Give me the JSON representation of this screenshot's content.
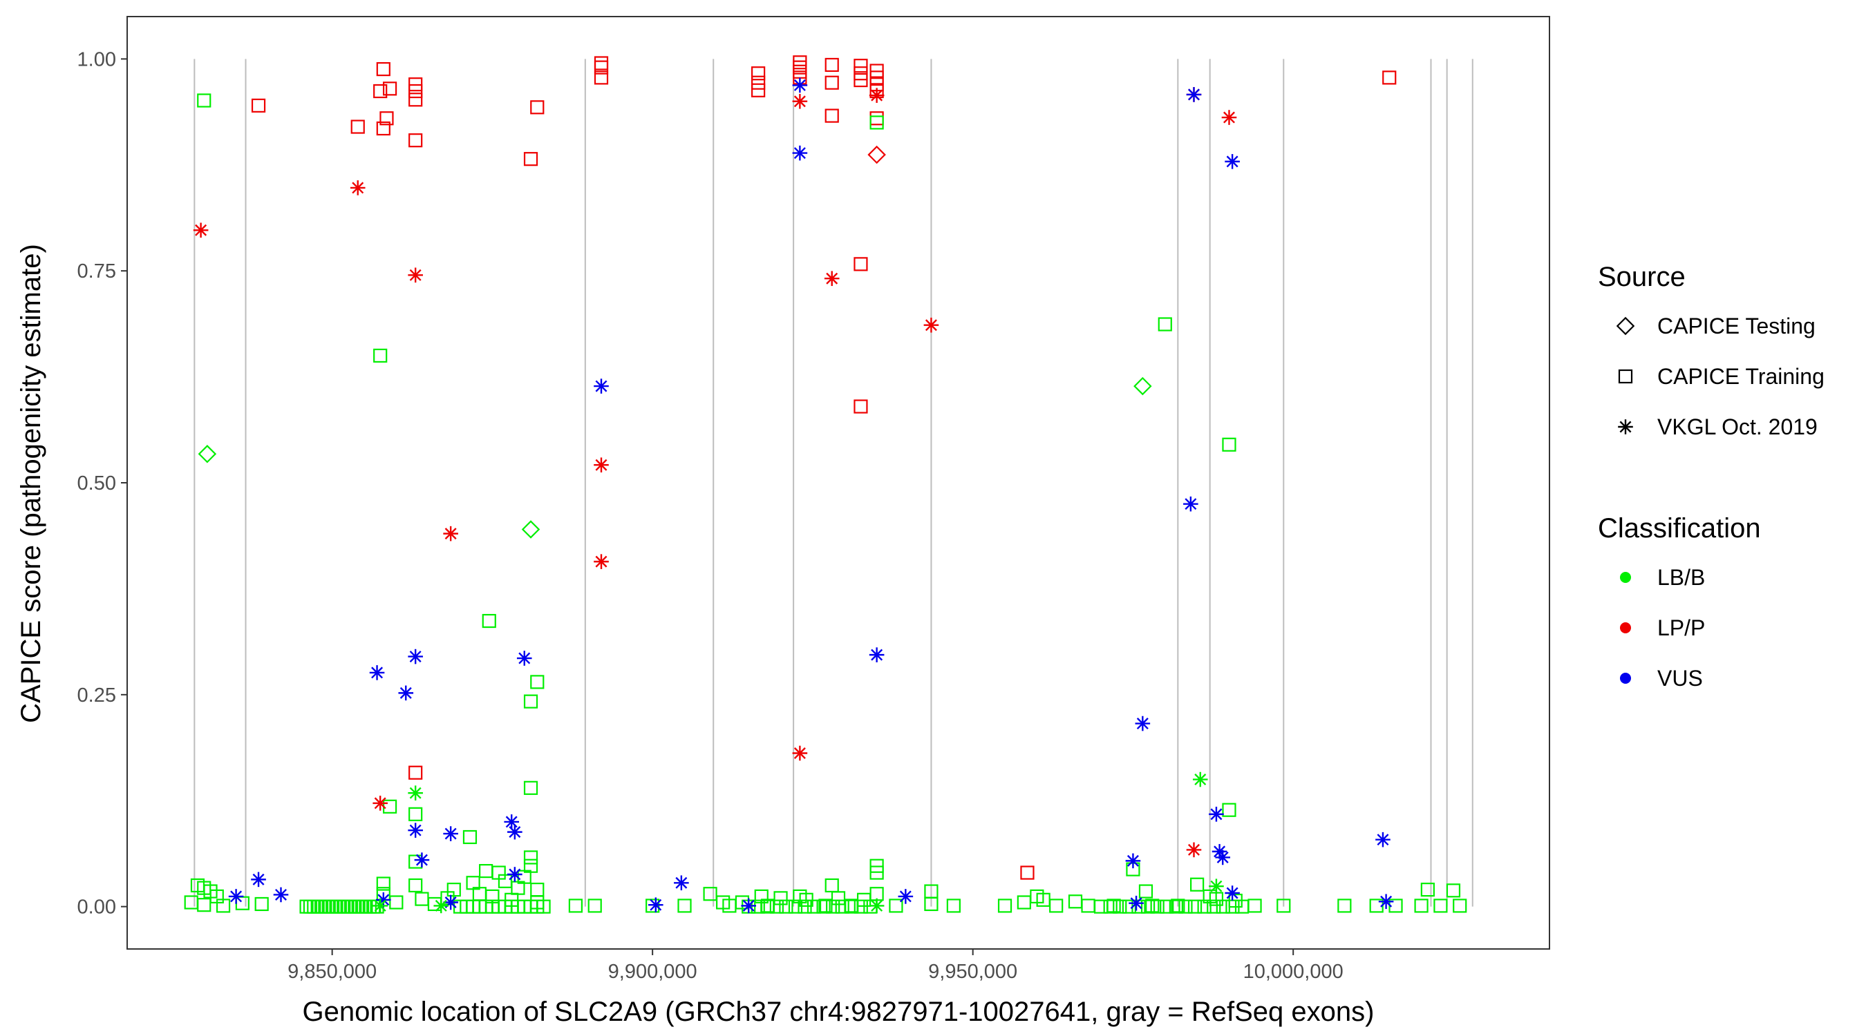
{
  "chart_data": {
    "type": "scatter",
    "title": "",
    "xlabel": "Genomic location of SLC2A9 (GRCh37 chr4:9827971-10027641, gray = RefSeq exons)",
    "ylabel": "CAPICE score (pathogenicity estimate)",
    "xlim": [
      9818000,
      10040000
    ],
    "ylim": [
      -0.05,
      1.05
    ],
    "x_ticks": [
      9850000,
      9900000,
      9950000,
      10000000
    ],
    "x_tick_labels": [
      "9,850,000",
      "9,900,000",
      "9,950,000",
      "10,000,000"
    ],
    "y_ticks": [
      0.0,
      0.25,
      0.5,
      0.75,
      1.0
    ],
    "y_tick_labels": [
      "0.00",
      "0.25",
      "0.50",
      "0.75",
      "1.00"
    ],
    "grid": false,
    "exon_lines": [
      9828500,
      9836500,
      9889500,
      9909500,
      9922000,
      9943500,
      9982000,
      9987000,
      9998500,
      10021500,
      10024000,
      10028000
    ],
    "legend_position": "right",
    "legend": {
      "source_title": "Source",
      "source_entries": [
        {
          "label": "CAPICE Testing",
          "shape": "diamond"
        },
        {
          "label": "CAPICE Training",
          "shape": "square"
        },
        {
          "label": "VKGL Oct. 2019",
          "shape": "asterisk"
        }
      ],
      "class_title": "Classification",
      "class_entries": [
        {
          "label": "LB/B",
          "color": "#00ee00"
        },
        {
          "label": "LP/P",
          "color": "#ee0000"
        },
        {
          "label": "VUS",
          "color": "#0000ee"
        }
      ]
    },
    "series": [
      {
        "source": "CAPICE Training",
        "classification": "LP/P",
        "shape": "square",
        "color": "#ee0000",
        "points": [
          [
            9838500,
            0.945
          ],
          [
            9854000,
            0.92
          ],
          [
            9857500,
            0.962
          ],
          [
            9858000,
            0.988
          ],
          [
            9858000,
            0.918
          ],
          [
            9858500,
            0.93
          ],
          [
            9859000,
            0.965
          ],
          [
            9863000,
            0.97
          ],
          [
            9863000,
            0.962
          ],
          [
            9863000,
            0.952
          ],
          [
            9863000,
            0.904
          ],
          [
            9881000,
            0.882
          ],
          [
            9882000,
            0.943
          ],
          [
            9892000,
            0.995
          ],
          [
            9892000,
            0.99
          ],
          [
            9892000,
            0.978
          ],
          [
            9916500,
            0.983
          ],
          [
            9916500,
            0.972
          ],
          [
            9916500,
            0.963
          ],
          [
            9923000,
            0.996
          ],
          [
            9923000,
            0.99
          ],
          [
            9923000,
            0.985
          ],
          [
            9923000,
            0.978
          ],
          [
            9928000,
            0.993
          ],
          [
            9928000,
            0.972
          ],
          [
            9928000,
            0.933
          ],
          [
            9932500,
            0.992
          ],
          [
            9932500,
            0.983
          ],
          [
            9932500,
            0.975
          ],
          [
            9932500,
            0.758
          ],
          [
            9932500,
            0.59
          ],
          [
            9935000,
            0.986
          ],
          [
            9935000,
            0.978
          ],
          [
            9935000,
            0.97
          ],
          [
            9935000,
            0.962
          ],
          [
            9935000,
            0.93
          ],
          [
            9863000,
            0.158
          ],
          [
            9958500,
            0.04
          ],
          [
            10015000,
            0.978
          ]
        ]
      },
      {
        "source": "CAPICE Training",
        "classification": "LB/B",
        "shape": "square",
        "color": "#00ee00",
        "points": [
          [
            9830000,
            0.951
          ],
          [
            9857500,
            0.65
          ],
          [
            9859000,
            0.118
          ],
          [
            9874500,
            0.337
          ],
          [
            9863000,
            0.109
          ],
          [
            9863000,
            0.053
          ],
          [
            9863000,
            0.025
          ],
          [
            9871500,
            0.082
          ],
          [
            9876000,
            0.04
          ],
          [
            9881000,
            0.242
          ],
          [
            9882000,
            0.265
          ],
          [
            9881000,
            0.14
          ],
          [
            9881000,
            0.058
          ],
          [
            9881000,
            0.048
          ],
          [
            9880000,
            0.035
          ],
          [
            9879000,
            0.022
          ],
          [
            9877000,
            0.03
          ],
          [
            9874000,
            0.042
          ],
          [
            9869000,
            0.02
          ],
          [
            9868000,
            0.01
          ],
          [
            9829000,
            0.025
          ],
          [
            9830000,
            0.022
          ],
          [
            9831000,
            0.018
          ],
          [
            9832000,
            0.012
          ],
          [
            9828000,
            0.005
          ],
          [
            9830000,
            0.002
          ],
          [
            9833000,
            0.001
          ],
          [
            9836000,
            0.004
          ],
          [
            9839000,
            0.003
          ],
          [
            9858000,
            0.027
          ],
          [
            9858000,
            0.015
          ],
          [
            9860000,
            0.005
          ],
          [
            9864000,
            0.009
          ],
          [
            9866000,
            0.003
          ],
          [
            9872000,
            0.028
          ],
          [
            9873000,
            0.015
          ],
          [
            9875000,
            0.012
          ],
          [
            9878000,
            0.008
          ],
          [
            9882000,
            0.02
          ],
          [
            9882000,
            0.005
          ],
          [
            9909000,
            0.015
          ],
          [
            9911000,
            0.005
          ],
          [
            9914000,
            0.005
          ],
          [
            9917000,
            0.012
          ],
          [
            9920000,
            0.01
          ],
          [
            9923000,
            0.012
          ],
          [
            9924000,
            0.008
          ],
          [
            9928000,
            0.025
          ],
          [
            9929000,
            0.01
          ],
          [
            9933000,
            0.008
          ],
          [
            9935000,
            0.048
          ],
          [
            9935000,
            0.04
          ],
          [
            9935000,
            0.015
          ],
          [
            9935000,
            0.925
          ],
          [
            9943500,
            0.018
          ],
          [
            9943500,
            0.003
          ],
          [
            9958000,
            0.005
          ],
          [
            9960000,
            0.012
          ],
          [
            9961000,
            0.008
          ],
          [
            9966000,
            0.006
          ],
          [
            9975000,
            0.044
          ],
          [
            9977000,
            0.018
          ],
          [
            9980000,
            0.687
          ],
          [
            9985000,
            0.026
          ],
          [
            9987000,
            0.012
          ],
          [
            9988000,
            0.009
          ],
          [
            9990000,
            0.545
          ],
          [
            9990000,
            0.114
          ],
          [
            9991000,
            0.007
          ],
          [
            10021000,
            0.02
          ],
          [
            10025000,
            0.019
          ],
          [
            9888000,
            0.001
          ],
          [
            9891000,
            0.001
          ],
          [
            9900000,
            0.001
          ],
          [
            9905000,
            0.001
          ],
          [
            9912000,
            0.001
          ],
          [
            9918000,
            0.001
          ],
          [
            9927000,
            0.001
          ],
          [
            9931000,
            0.001
          ],
          [
            9938000,
            0.001
          ],
          [
            9947000,
            0.001
          ],
          [
            9955000,
            0.001
          ],
          [
            9963000,
            0.001
          ],
          [
            9968000,
            0.001
          ],
          [
            9972000,
            0.001
          ],
          [
            9978000,
            0.001
          ],
          [
            9982000,
            0.001
          ],
          [
            9994000,
            0.001
          ],
          [
            9998500,
            0.001
          ],
          [
            10008000,
            0.001
          ],
          [
            10013000,
            0.001
          ],
          [
            10016000,
            0.001
          ],
          [
            10020000,
            0.001
          ],
          [
            10023000,
            0.001
          ],
          [
            10026000,
            0.001
          ]
        ]
      },
      {
        "source": "CAPICE Testing",
        "classification": "LB/B",
        "shape": "diamond",
        "color": "#00ee00",
        "points": [
          [
            9830500,
            0.534
          ],
          [
            9881000,
            0.445
          ],
          [
            9976500,
            0.614
          ]
        ]
      },
      {
        "source": "CAPICE Testing",
        "classification": "LP/P",
        "shape": "diamond",
        "color": "#ee0000",
        "points": [
          [
            9935000,
            0.887
          ]
        ]
      },
      {
        "source": "VKGL Oct. 2019",
        "classification": "LP/P",
        "shape": "asterisk",
        "color": "#ee0000",
        "points": [
          [
            9829500,
            0.798
          ],
          [
            9854000,
            0.848
          ],
          [
            9863000,
            0.745
          ],
          [
            9868500,
            0.44
          ],
          [
            9857500,
            0.122
          ],
          [
            9892000,
            0.521
          ],
          [
            9892000,
            0.407
          ],
          [
            9923000,
            0.95
          ],
          [
            9923000,
            0.181
          ],
          [
            9928000,
            0.741
          ],
          [
            9935000,
            0.957
          ],
          [
            9943500,
            0.686
          ],
          [
            9984500,
            0.958
          ],
          [
            9990000,
            0.931
          ],
          [
            9984500,
            0.067
          ]
        ]
      },
      {
        "source": "VKGL Oct. 2019",
        "classification": "VUS",
        "shape": "asterisk",
        "color": "#0000ee",
        "points": [
          [
            9835000,
            0.012
          ],
          [
            9838500,
            0.032
          ],
          [
            9842000,
            0.014
          ],
          [
            9857000,
            0.276
          ],
          [
            9861500,
            0.252
          ],
          [
            9863000,
            0.295
          ],
          [
            9863000,
            0.09
          ],
          [
            9864000,
            0.055
          ],
          [
            9868500,
            0.086
          ],
          [
            9878000,
            0.1
          ],
          [
            9878500,
            0.088
          ],
          [
            9878500,
            0.038
          ],
          [
            9880000,
            0.293
          ],
          [
            9892000,
            0.614
          ],
          [
            9904500,
            0.028
          ],
          [
            9900500,
            0.002
          ],
          [
            9915000,
            0.001
          ],
          [
            9923000,
            0.969
          ],
          [
            9923000,
            0.889
          ],
          [
            9935000,
            0.297
          ],
          [
            9939500,
            0.012
          ],
          [
            9975000,
            0.054
          ],
          [
            9976500,
            0.216
          ],
          [
            9984000,
            0.475
          ],
          [
            9984500,
            0.958
          ],
          [
            9988000,
            0.109
          ],
          [
            9988500,
            0.065
          ],
          [
            9989000,
            0.058
          ],
          [
            9990500,
            0.879
          ],
          [
            9990500,
            0.016
          ],
          [
            10014000,
            0.079
          ],
          [
            10014500,
            0.006
          ],
          [
            9858000,
            0.008
          ],
          [
            9975500,
            0.004
          ],
          [
            9868500,
            0.005
          ]
        ]
      },
      {
        "source": "VKGL Oct. 2019",
        "classification": "LB/B",
        "shape": "asterisk",
        "color": "#00ee00",
        "points": [
          [
            9863000,
            0.134
          ],
          [
            9985500,
            0.15
          ],
          [
            9988000,
            0.024
          ],
          [
            9935000,
            0.001
          ],
          [
            9857500,
            0.001
          ],
          [
            9867000,
            0.001
          ]
        ]
      }
    ],
    "dense_strips": [
      {
        "x_from": 9846000,
        "x_to": 9857000,
        "y": 0.0,
        "color": "#00ee00",
        "shape": "square",
        "count": 20
      },
      {
        "x_from": 9870000,
        "x_to": 9883000,
        "y": 0.0,
        "color": "#00ee00",
        "shape": "square",
        "count": 14
      },
      {
        "x_from": 9915000,
        "x_to": 9934000,
        "y": 0.0,
        "color": "#00ee00",
        "shape": "square",
        "count": 14
      },
      {
        "x_from": 9970000,
        "x_to": 9992000,
        "y": 0.0,
        "color": "#00ee00",
        "shape": "square",
        "count": 16
      }
    ]
  }
}
